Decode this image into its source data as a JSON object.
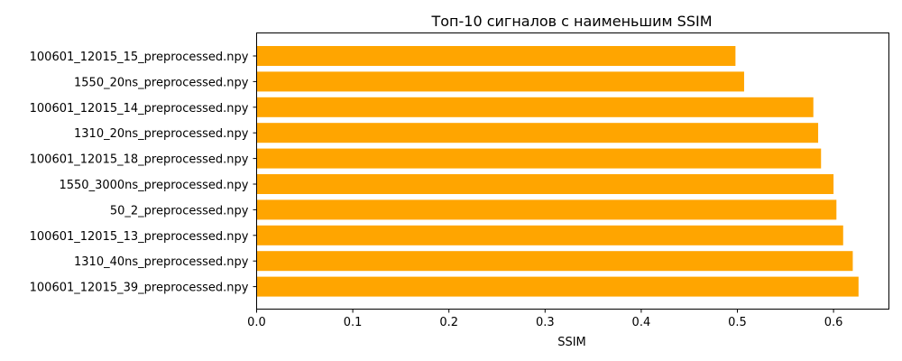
{
  "chart_data": {
    "type": "bar",
    "orientation": "horizontal",
    "title": "Топ-10 сигналов с наименьшим SSIM",
    "xlabel": "SSIM",
    "ylabel": "",
    "xlim": [
      0,
      0.66
    ],
    "xticks": [
      "0.0",
      "0.1",
      "0.2",
      "0.3",
      "0.4",
      "0.5",
      "0.6"
    ],
    "bar_color": "#ffa500",
    "grid": false,
    "categories": [
      "100601_12015_15_preprocessed.npy",
      "1550_20ns_preprocessed.npy",
      "100601_12015_14_preprocessed.npy",
      "1310_20ns_preprocessed.npy",
      "100601_12015_18_preprocessed.npy",
      "1550_3000ns_preprocessed.npy",
      "50_2_preprocessed.npy",
      "100601_12015_13_preprocessed.npy",
      "1310_40ns_preprocessed.npy",
      "100601_12015_39_preprocessed.npy"
    ],
    "values": [
      0.498,
      0.507,
      0.579,
      0.584,
      0.587,
      0.6,
      0.603,
      0.61,
      0.62,
      0.626
    ]
  }
}
